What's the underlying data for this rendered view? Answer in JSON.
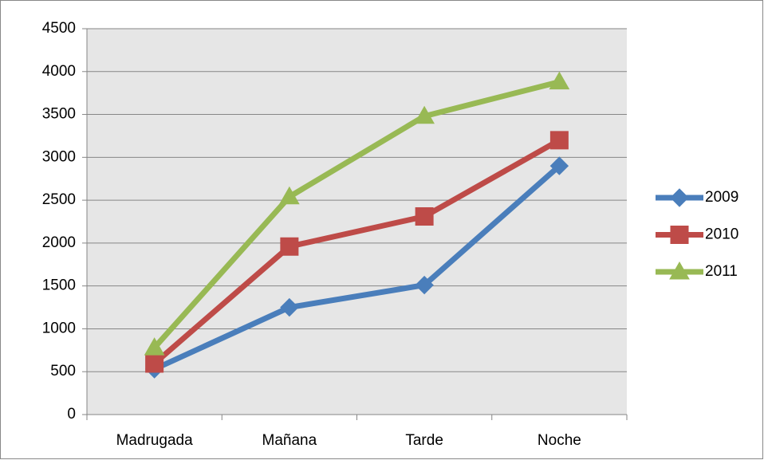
{
  "chart_data": {
    "type": "line",
    "categories": [
      "Madrugada",
      "Mañana",
      "Tarde",
      "Noche"
    ],
    "series": [
      {
        "name": "2009",
        "color": "#4a7ebb",
        "marker": "diamond",
        "values": [
          530,
          1250,
          1510,
          2900
        ]
      },
      {
        "name": "2010",
        "color": "#be4b48",
        "marker": "square",
        "values": [
          595,
          1960,
          2310,
          3200
        ]
      },
      {
        "name": "2011",
        "color": "#98b954",
        "marker": "triangle",
        "values": [
          780,
          2540,
          3480,
          3880
        ]
      }
    ],
    "ylim": [
      0,
      4500
    ],
    "yticks": [
      0,
      500,
      1000,
      1500,
      2000,
      2500,
      3000,
      3500,
      4000,
      4500
    ],
    "grid": true,
    "legend": "right"
  }
}
